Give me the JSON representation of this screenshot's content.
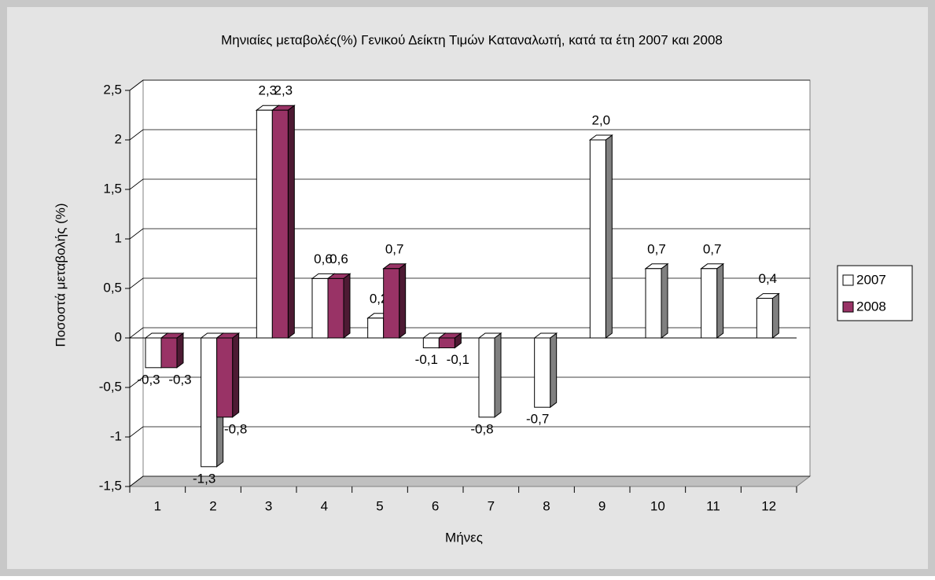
{
  "chart_data": {
    "type": "bar3d",
    "title": "Μηνιαίες μεταβολές(%) Γενικού Δείκτη Τιμών Καταναλωτή, κατά τα έτη 2007 και 2008",
    "x_label": "Μήνες",
    "y_label": "Ποσοστά μεταβολής (%)",
    "categories": [
      "1",
      "2",
      "3",
      "4",
      "5",
      "6",
      "7",
      "8",
      "9",
      "10",
      "11",
      "12"
    ],
    "series": [
      {
        "name": "2007",
        "color": "#ffffff",
        "side_color": "#808080",
        "values": [
          -0.3,
          -1.3,
          2.3,
          0.6,
          0.2,
          -0.1,
          -0.8,
          -0.7,
          2.0,
          0.7,
          0.7,
          0.4
        ],
        "value_labels": [
          "-0,3",
          "-1,3",
          "2,3",
          "0,6",
          "0,2",
          "-0,1",
          "-0,8",
          "-0,7",
          "2,0",
          "0,7",
          "0,7",
          "0,4"
        ]
      },
      {
        "name": "2008",
        "color": "#993366",
        "side_color": "#4d1a33",
        "values": [
          -0.3,
          -0.8,
          2.3,
          0.6,
          0.7,
          -0.1,
          null,
          null,
          null,
          null,
          null,
          null
        ],
        "value_labels": [
          "-0,3",
          "-0,8",
          "2,3",
          "0,6",
          "0,7",
          "-0,1",
          null,
          null,
          null,
          null,
          null,
          null
        ]
      }
    ],
    "ylim": [
      -1.5,
      2.5
    ],
    "yticks": [
      {
        "value": 2.5,
        "label": "2,5"
      },
      2,
      {
        "value": 1.5,
        "label": "1,5"
      },
      1,
      {
        "value": 0.5,
        "label": "0,5"
      },
      0,
      {
        "value": -0.5,
        "label": "-0,5"
      },
      -1,
      {
        "value": -1.5,
        "label": "-1,5"
      }
    ],
    "grid": true,
    "legend": "right"
  }
}
